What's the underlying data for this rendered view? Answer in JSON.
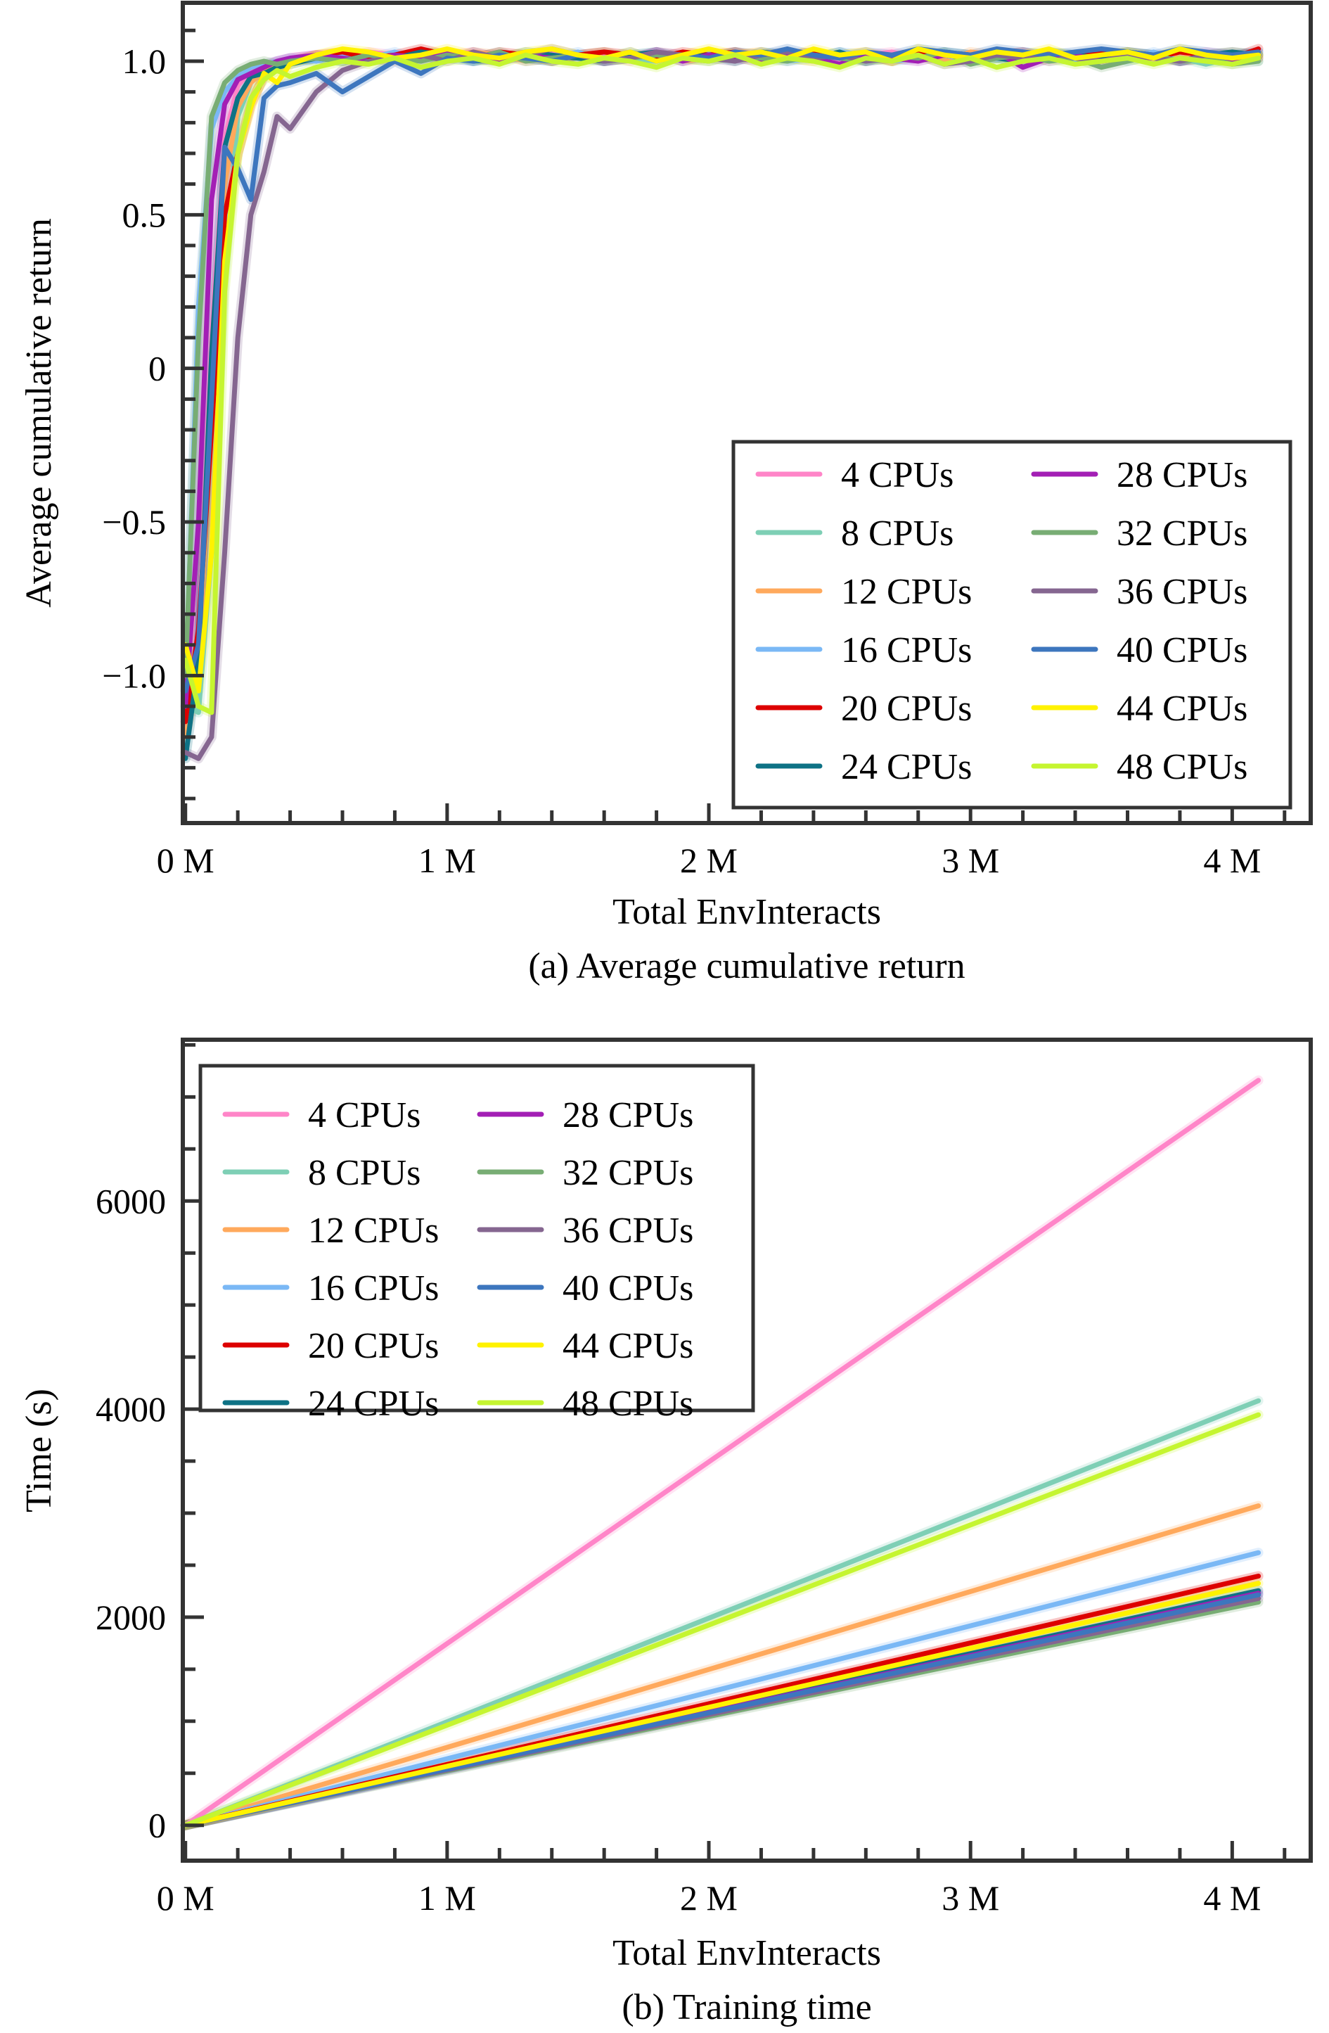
{
  "chart_data": [
    {
      "type": "line",
      "panel": "a",
      "caption": "(a) Average cumulative return",
      "xlabel": "Total EnvInteracts",
      "ylabel": "Average cumulative return",
      "xlim": [
        -0.01,
        4.3
      ],
      "ylim": [
        -1.48,
        1.19
      ],
      "x_unit": "M",
      "xticks": [
        0,
        1,
        2,
        3,
        4
      ],
      "xtick_labels": [
        "0 M",
        "1 M",
        "2 M",
        "3 M",
        "4 M"
      ],
      "x_minor_step": 0.2,
      "yticks": [
        -1.0,
        -0.5,
        0,
        0.5,
        1.0
      ],
      "ytick_labels": [
        "−1.0",
        "−0.5",
        "0",
        "0.5",
        "1.0"
      ],
      "y_minor_step": 0.1,
      "grid": false,
      "legend_position": "lower-right",
      "legend_columns": 2,
      "x": [
        0,
        0.05,
        0.1,
        0.15,
        0.2,
        0.25,
        0.3,
        0.35,
        0.4,
        0.5,
        0.6,
        0.7,
        0.8,
        0.9,
        1.0,
        1.1,
        1.2,
        1.3,
        1.4,
        1.5,
        1.6,
        1.7,
        1.8,
        1.9,
        2.0,
        2.1,
        2.2,
        2.3,
        2.4,
        2.5,
        2.6,
        2.7,
        2.8,
        2.9,
        3.0,
        3.1,
        3.2,
        3.3,
        3.4,
        3.5,
        3.6,
        3.7,
        3.8,
        3.9,
        4.0,
        4.1
      ],
      "series": [
        {
          "name": "4 CPUs",
          "color": "#FF85C8",
          "values": [
            -1.15,
            -0.9,
            0.1,
            0.75,
            0.92,
            0.97,
            0.99,
            1.0,
            1.01,
            1.02,
            1.01,
            1.03,
            1.02,
            1.0,
            1.02,
            1.03,
            1.01,
            1.02,
            1.03,
            1.01,
            1.02,
            1.0,
            1.03,
            1.02,
            1.01,
            1.02,
            1.03,
            1.01,
            1.02,
            1.0,
            1.02,
            1.03,
            1.01,
            1.02,
            1.01,
            1.03,
            1.02,
            1.0,
            1.02,
            1.03,
            1.01,
            1.02,
            1.01,
            1.03,
            1.02,
            1.01
          ]
        },
        {
          "name": "8 CPUs",
          "color": "#7ECFB5",
          "values": [
            -1.1,
            -1.12,
            -0.6,
            0.3,
            0.82,
            0.93,
            0.97,
            0.99,
            1.0,
            1.01,
            1.02,
            1.0,
            1.02,
            1.01,
            1.03,
            1.0,
            1.02,
            1.01,
            1.0,
            1.02,
            1.03,
            1.01,
            1.0,
            1.02,
            1.01,
            1.03,
            1.0,
            1.02,
            1.01,
            1.02,
            1.0,
            1.01,
            1.03,
            1.0,
            1.02,
            1.01,
            1.0,
            1.02,
            1.01,
            1.03,
            1.0,
            1.02,
            1.01,
            0.99,
            1.01,
            1.0
          ]
        },
        {
          "name": "12 CPUs",
          "color": "#FFA95C",
          "values": [
            -1.2,
            -1.0,
            -0.1,
            0.6,
            0.85,
            0.93,
            0.97,
            0.98,
            1.0,
            1.01,
            1.02,
            1.01,
            1.0,
            1.02,
            1.01,
            1.03,
            1.02,
            1.0,
            1.01,
            1.02,
            1.03,
            1.01,
            1.02,
            1.0,
            1.01,
            1.03,
            1.02,
            1.01,
            1.0,
            1.02,
            1.03,
            1.01,
            1.02,
            1.0,
            1.03,
            1.02,
            1.01,
            1.02,
            1.0,
            1.01,
            1.03,
            1.02,
            1.01,
            1.02,
            1.03,
            1.02
          ]
        },
        {
          "name": "16 CPUs",
          "color": "#7AB8F5",
          "values": [
            -1.05,
            0.2,
            0.78,
            0.9,
            0.95,
            0.98,
            0.99,
            1.0,
            1.01,
            1.0,
            1.02,
            1.01,
            1.03,
            1.0,
            1.02,
            1.01,
            1.0,
            1.02,
            1.01,
            1.03,
            1.0,
            1.01,
            1.02,
            1.0,
            1.03,
            1.01,
            1.02,
            1.0,
            1.01,
            1.03,
            1.02,
            1.0,
            1.01,
            1.02,
            1.0,
            1.01,
            1.03,
            1.02,
            1.0,
            1.02,
            1.01,
            1.03,
            1.0,
            1.02,
            1.01,
            1.03
          ]
        },
        {
          "name": "20 CPUs",
          "color": "#DD0000",
          "values": [
            -1.15,
            -0.85,
            -0.2,
            0.5,
            0.7,
            0.86,
            0.95,
            0.98,
            1.0,
            1.02,
            1.03,
            1.01,
            1.02,
            1.04,
            1.02,
            1.01,
            1.03,
            1.02,
            1.0,
            1.02,
            1.03,
            1.02,
            1.01,
            1.03,
            1.02,
            1.03,
            1.01,
            1.02,
            1.03,
            1.01,
            1.02,
            1.0,
            1.03,
            1.02,
            1.01,
            1.02,
            1.03,
            1.01,
            1.02,
            1.03,
            1.02,
            1.01,
            1.03,
            1.02,
            1.01,
            1.04
          ]
        },
        {
          "name": "24 CPUs",
          "color": "#0E7285",
          "values": [
            -1.27,
            -0.95,
            0.05,
            0.72,
            0.88,
            0.95,
            0.96,
            0.98,
            0.99,
            1.01,
            1.0,
            1.02,
            1.01,
            1.03,
            1.02,
            1.0,
            1.01,
            1.03,
            1.02,
            1.01,
            1.0,
            1.02,
            1.03,
            1.01,
            1.02,
            1.0,
            1.03,
            1.02,
            1.01,
            1.03,
            1.0,
            1.02,
            1.01,
            1.03,
            1.02,
            1.01,
            1.0,
            1.03,
            1.02,
            1.01,
            1.03,
            1.02,
            1.0,
            1.02,
            1.03,
            1.02
          ]
        },
        {
          "name": "28 CPUs",
          "color": "#A31FB5",
          "values": [
            -1.1,
            -0.5,
            0.55,
            0.86,
            0.94,
            0.96,
            0.98,
            1.0,
            1.01,
            1.02,
            1.01,
            1.0,
            1.02,
            1.01,
            1.03,
            1.01,
            1.0,
            1.02,
            1.01,
            1.02,
            1.0,
            1.01,
            1.03,
            1.0,
            1.02,
            1.01,
            1.0,
            1.02,
            1.01,
            0.99,
            1.02,
            1.01,
            1.0,
            1.02,
            1.01,
            1.03,
            0.98,
            1.01,
            1.02,
            1.0,
            1.01,
            1.02,
            1.0,
            1.01,
            1.0,
            1.01
          ]
        },
        {
          "name": "32 CPUs",
          "color": "#78AD74",
          "values": [
            -1.0,
            0.1,
            0.82,
            0.93,
            0.97,
            0.99,
            1.0,
            0.99,
            1.0,
            1.01,
            1.0,
            1.02,
            1.01,
            1.0,
            1.02,
            1.01,
            1.03,
            1.0,
            1.01,
            1.02,
            1.0,
            1.01,
            1.02,
            1.01,
            1.0,
            1.02,
            1.01,
            1.0,
            1.02,
            1.01,
            1.0,
            1.02,
            1.01,
            1.03,
            0.99,
            1.01,
            1.02,
            1.0,
            1.01,
            0.98,
            1.0,
            1.02,
            1.0,
            1.01,
            0.99,
            1.0
          ]
        },
        {
          "name": "36 CPUs",
          "color": "#856690",
          "values": [
            -1.25,
            -1.27,
            -1.2,
            -0.6,
            0.1,
            0.5,
            0.64,
            0.82,
            0.78,
            0.9,
            0.97,
            1.0,
            1.01,
            1.02,
            1.0,
            1.03,
            1.01,
            1.02,
            1.04,
            1.02,
            1.0,
            1.01,
            1.03,
            1.02,
            1.01,
            1.0,
            1.02,
            1.03,
            1.01,
            1.02,
            1.0,
            1.01,
            1.02,
            0.99,
            1.0,
            1.02,
            1.01,
            1.03,
            1.01,
            1.0,
            1.02,
            1.01,
            1.0,
            1.02,
            1.01,
            1.02
          ]
        },
        {
          "name": "40 CPUs",
          "color": "#3D76BE",
          "values": [
            -1.05,
            -0.9,
            -0.1,
            0.72,
            0.65,
            0.55,
            0.88,
            0.92,
            0.93,
            0.96,
            0.9,
            0.95,
            1.0,
            0.96,
            1.01,
            1.0,
            1.02,
            1.01,
            1.0,
            1.02,
            1.01,
            1.03,
            1.0,
            1.02,
            1.01,
            1.03,
            1.02,
            1.04,
            1.02,
            1.01,
            1.03,
            1.02,
            1.04,
            1.03,
            1.02,
            1.04,
            1.03,
            1.02,
            1.03,
            1.04,
            1.03,
            1.02,
            1.04,
            1.03,
            1.02,
            1.03
          ]
        },
        {
          "name": "44 CPUs",
          "color": "#FFF200",
          "values": [
            -0.9,
            -1.05,
            -0.6,
            0.35,
            0.7,
            0.85,
            0.96,
            0.93,
            0.99,
            1.02,
            1.04,
            1.03,
            1.01,
            1.02,
            1.04,
            1.02,
            1.01,
            1.03,
            1.04,
            1.02,
            1.01,
            1.03,
            1.0,
            1.02,
            1.04,
            1.02,
            1.03,
            1.01,
            1.04,
            1.02,
            1.03,
            1.0,
            1.04,
            1.02,
            1.01,
            1.03,
            1.02,
            1.04,
            1.01,
            1.02,
            1.03,
            1.01,
            1.04,
            1.02,
            1.01,
            1.02
          ]
        },
        {
          "name": "48 CPUs",
          "color": "#C5F530",
          "values": [
            -0.95,
            -1.1,
            -1.12,
            0.25,
            0.7,
            0.88,
            0.94,
            0.97,
            0.95,
            0.98,
            1.0,
            0.99,
            1.01,
            0.98,
            1.0,
            1.01,
            0.99,
            1.02,
            1.0,
            0.99,
            1.01,
            1.0,
            0.98,
            1.01,
            1.0,
            1.02,
            0.99,
            1.01,
            1.0,
            0.98,
            1.01,
            1.0,
            1.02,
            0.99,
            1.01,
            0.98,
            1.0,
            1.01,
            0.99,
            1.0,
            1.01,
            0.99,
            1.01,
            1.0,
            0.99,
            1.01
          ]
        }
      ]
    },
    {
      "type": "line",
      "panel": "b",
      "caption": "(b) Training time",
      "xlabel": "Total EnvInteracts",
      "ylabel": "Time (s)",
      "xlim": [
        -0.01,
        4.3
      ],
      "ylim": [
        -340,
        7550
      ],
      "x_unit": "M",
      "xticks": [
        0,
        1,
        2,
        3,
        4
      ],
      "xtick_labels": [
        "0 M",
        "1 M",
        "2 M",
        "3 M",
        "4 M"
      ],
      "x_minor_step": 0.2,
      "yticks": [
        0,
        2000,
        4000,
        6000
      ],
      "ytick_labels": [
        "0",
        "2000",
        "4000",
        "6000"
      ],
      "y_minor_step": 500,
      "grid": false,
      "legend_position": "upper-left",
      "legend_columns": 2,
      "x": [
        0,
        4.1
      ],
      "series": [
        {
          "name": "4 CPUs",
          "color": "#FF85C8",
          "values": [
            0,
            7160
          ]
        },
        {
          "name": "8 CPUs",
          "color": "#7ECFB5",
          "values": [
            0,
            4080
          ]
        },
        {
          "name": "12 CPUs",
          "color": "#FFA95C",
          "values": [
            0,
            3070
          ]
        },
        {
          "name": "16 CPUs",
          "color": "#7AB8F5",
          "values": [
            0,
            2620
          ]
        },
        {
          "name": "20 CPUs",
          "color": "#DD0000",
          "values": [
            0,
            2395
          ]
        },
        {
          "name": "24 CPUs",
          "color": "#0E7285",
          "values": [
            0,
            2255
          ]
        },
        {
          "name": "28 CPUs",
          "color": "#A31FB5",
          "values": [
            0,
            2230
          ]
        },
        {
          "name": "32 CPUs",
          "color": "#78AD74",
          "values": [
            0,
            2145
          ]
        },
        {
          "name": "36 CPUs",
          "color": "#856690",
          "values": [
            0,
            2180
          ]
        },
        {
          "name": "40 CPUs",
          "color": "#3D76BE",
          "values": [
            0,
            2215
          ]
        },
        {
          "name": "44 CPUs",
          "color": "#FFF200",
          "values": [
            0,
            2325
          ]
        },
        {
          "name": "48 CPUs",
          "color": "#C5F530",
          "values": [
            0,
            3945
          ]
        }
      ]
    }
  ]
}
